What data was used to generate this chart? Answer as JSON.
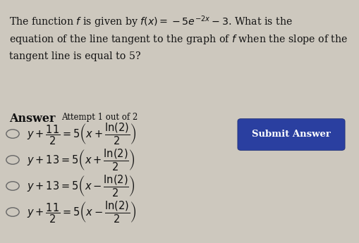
{
  "background_color": "#cdc8be",
  "title_line1": "The function $f$ is given by $f(x) = -5e^{-2x} - 3$. What is the",
  "title_line2": "equation of the line tangent to the graph of $f$ when the slope of the",
  "title_line3": "tangent line is equal to 5?",
  "answer_label": "Answer",
  "attempt_label": "Attempt 1 out of 2",
  "option_texts": [
    "$y + \\dfrac{11}{2} = 5\\left(x + \\dfrac{\\ln(2)}{2}\\right)$",
    "$y + 13 = 5\\left(x + \\dfrac{\\ln(2)}{2}\\right)$",
    "$y + 13 = 5\\left(x - \\dfrac{\\ln(2)}{2}\\right)$",
    "$y + \\dfrac{11}{2} = 5\\left(x - \\dfrac{\\ln(2)}{2}\\right)$"
  ],
  "submit_button_color": "#2a3fa0",
  "submit_button_text": "Submit Answer",
  "submit_button_text_color": "#ffffff",
  "text_color": "#111111",
  "title_fontsize": 10.2,
  "option_fontsize": 10.5,
  "answer_fontsize": 11.5,
  "attempt_fontsize": 8.5,
  "submit_fontsize": 9.5
}
